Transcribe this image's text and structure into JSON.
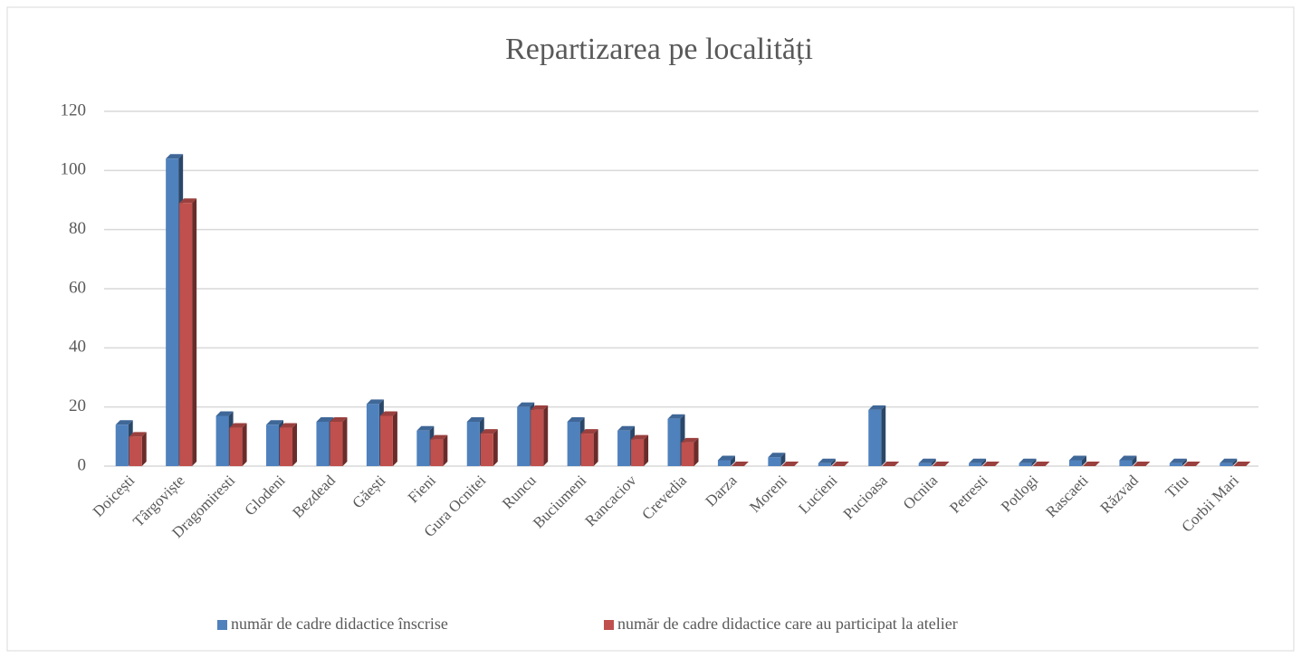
{
  "chart_data": {
    "type": "bar",
    "title": "Repartizarea pe localități",
    "categories": [
      "Doicești",
      "Târgoviște",
      "Dragomiresti",
      "Glodeni",
      "Bezdead",
      "Găești",
      "Fieni",
      "Gura Ocnitei",
      "Runcu",
      "Buciumeni",
      "Rancaciov",
      "Crevedia",
      "Darza",
      "Moreni",
      "Lucieni",
      "Pucioasa",
      "Ocnita",
      "Petresti",
      "Potlogi",
      "Rascaeti",
      "Răzvad",
      "Titu",
      "Corbii Mari"
    ],
    "series": [
      {
        "name": "număr de cadre didactice înscrise",
        "color": "#4f81bd",
        "values": [
          14,
          104,
          17,
          14,
          15,
          21,
          12,
          15,
          20,
          15,
          12,
          16,
          2,
          3,
          1,
          19,
          1,
          1,
          1,
          2,
          2,
          1,
          1
        ]
      },
      {
        "name": "număr de cadre didactice care au participat la atelier",
        "color": "#c0504d",
        "values": [
          10,
          89,
          13,
          13,
          15,
          17,
          9,
          11,
          19,
          11,
          9,
          8,
          0,
          0,
          0,
          0,
          0,
          0,
          0,
          0,
          0,
          0,
          0
        ]
      }
    ],
    "ylim": [
      0,
      120
    ],
    "yticks": [
      0,
      20,
      40,
      60,
      80,
      100,
      120
    ],
    "grid": true,
    "legend": "bottom"
  }
}
